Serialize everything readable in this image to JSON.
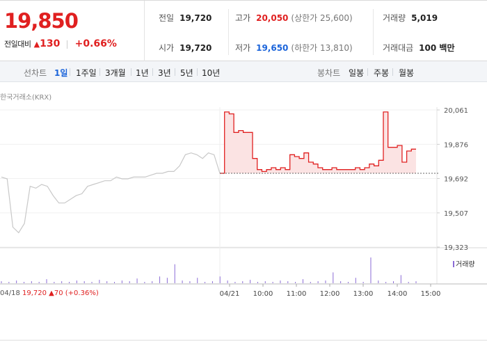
{
  "quote": {
    "price": "19,850",
    "change_label": "전일대비",
    "change_icon": "triangle-up-icon",
    "change_amount": "130",
    "change_pct": "+0.66%",
    "prev_close_label": "전일",
    "prev_close": "19,720",
    "open_label": "시가",
    "open": "19,720",
    "high_label": "고가",
    "high": "20,050",
    "upper_limit": "(상한가 25,600)",
    "low_label": "저가",
    "low": "19,650",
    "lower_limit": "(하한가 13,810)",
    "volume_label": "거래량",
    "volume": "5,019",
    "value_label": "거래대금",
    "value": "100 백만"
  },
  "tabs": {
    "line_label": "선차트",
    "line_tabs": [
      "1일",
      "1주일",
      "3개월",
      "1년",
      "3년",
      "5년",
      "10년"
    ],
    "active_line_tab": "1일",
    "candle_label": "봉차트",
    "candle_tabs": [
      "일봉",
      "주봉",
      "월봉"
    ]
  },
  "chart": {
    "market": "한국거래소(KRX)",
    "volume_legend": "거래량",
    "prev_date": "04/18",
    "prev_info": "19,720 ▲70 (+0.36%)",
    "colors": {
      "up": "#e02020",
      "down": "#1b64da",
      "prev_line": "#c8c8c8",
      "volume": "#8b6bd6"
    }
  },
  "chart_data": {
    "type": "line",
    "ylim": [
      19323,
      20061
    ],
    "y_ticks": [
      "20,061",
      "19,876",
      "19,692",
      "19,507",
      "19,323"
    ],
    "x_ticks": [
      "04/21",
      "10:00",
      "11:00",
      "12:00",
      "13:00",
      "14:00",
      "15:00"
    ],
    "baseline": 19720,
    "series": [
      {
        "values": [
          19700,
          19690,
          19430,
          19400,
          19450,
          19650,
          19640,
          19660,
          19650,
          19600,
          19560,
          19560,
          19580,
          19600,
          19610,
          19650,
          19660,
          19670,
          19680,
          19680,
          19700,
          19690,
          19690,
          19700,
          19700,
          19700,
          19710,
          19720,
          19720,
          19730,
          19730,
          19760,
          19820,
          19830,
          19820,
          19800,
          19830,
          19820,
          19720
        ]
      },
      {
        "values": [
          19720,
          20050,
          20040,
          19940,
          19950,
          19940,
          19940,
          19800,
          19740,
          19730,
          19740,
          19750,
          19740,
          19750,
          19740,
          19820,
          19810,
          19800,
          19830,
          19780,
          19770,
          19750,
          19740,
          19740,
          19750,
          19740,
          19740,
          19740,
          19740,
          19750,
          19740,
          19750,
          19770,
          19760,
          19790,
          20050,
          19860,
          19860,
          19870,
          19780,
          19840,
          19850,
          19850
        ]
      }
    ],
    "volume": [
      3,
      2,
      4,
      2,
      3,
      2,
      6,
      2,
      3,
      2,
      4,
      3,
      2,
      5,
      3,
      2,
      4,
      3,
      7,
      2,
      3,
      10,
      8,
      28,
      4,
      3,
      8,
      2,
      3,
      10,
      4,
      2,
      3,
      5,
      2,
      3,
      2,
      4,
      3,
      2,
      6,
      2,
      3,
      4,
      16,
      3,
      2,
      8,
      2,
      38,
      4,
      2,
      3,
      12,
      2,
      3
    ]
  }
}
